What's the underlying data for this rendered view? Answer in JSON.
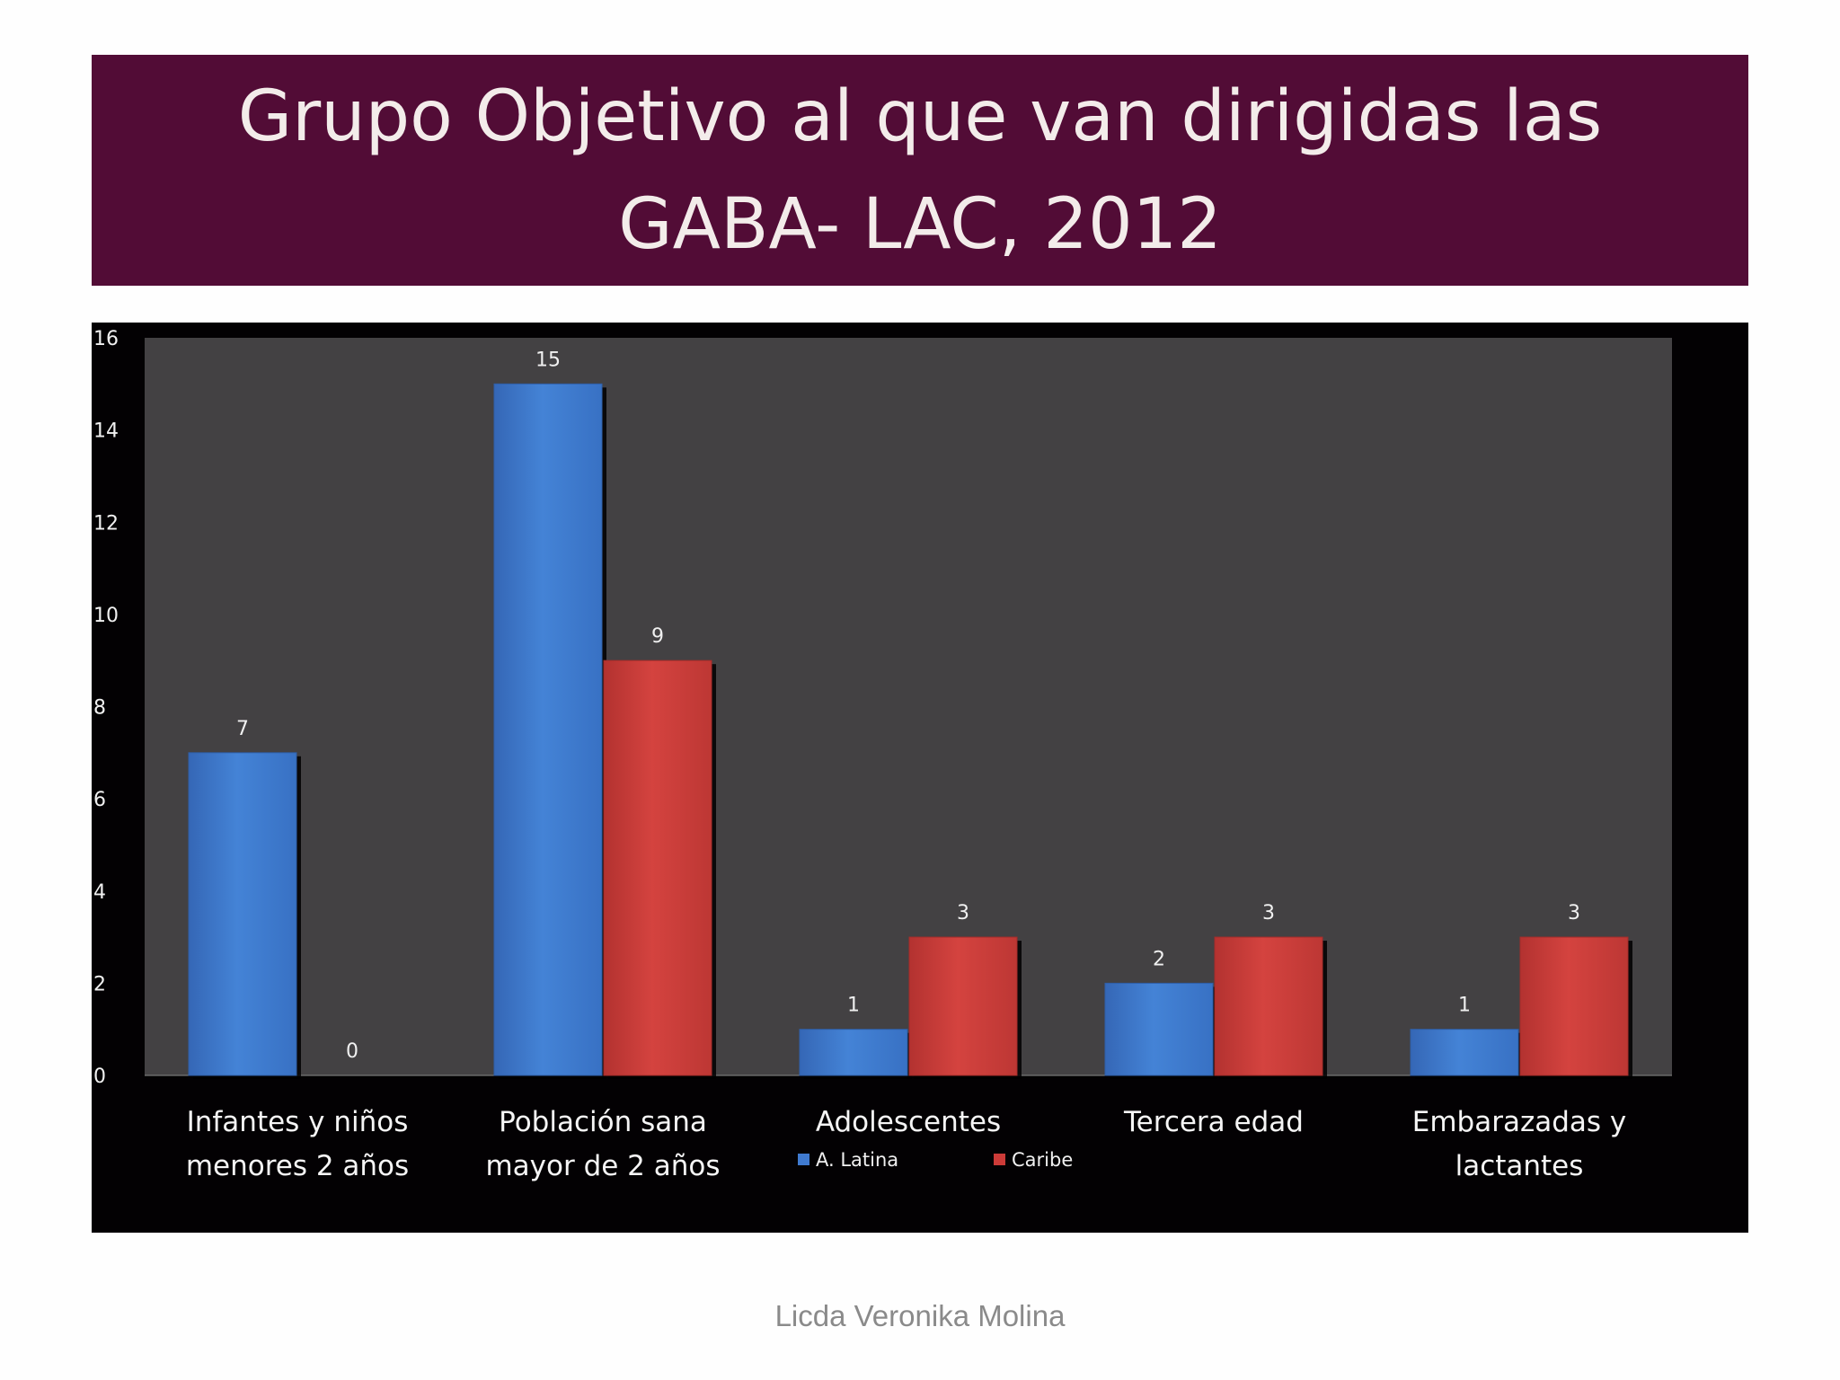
{
  "slide": {
    "title_line1": "Grupo Objetivo al que van dirigidas las",
    "title_line2": "GABA- LAC,  2012",
    "footer": "Licda Veronika Molina"
  },
  "colors": {
    "title_bg": "#520c36",
    "chart_bg": "#030103",
    "plot_bg": "#434143",
    "latina": "#3f7ad0",
    "caribe": "#cc3b38"
  },
  "chart_data": {
    "type": "bar",
    "title": "Grupo Objetivo al que van dirigidas las GABA- LAC,  2012",
    "categories": [
      [
        "Infantes y niños",
        "menores 2 años"
      ],
      [
        "Población sana",
        "mayor de 2 años"
      ],
      [
        "Adolescentes"
      ],
      [
        "Tercera edad"
      ],
      [
        "Embarazadas y",
        "lactantes"
      ]
    ],
    "series": [
      {
        "name": "A. Latina",
        "values": [
          7,
          15,
          1,
          2,
          1
        ]
      },
      {
        "name": "Caribe",
        "values": [
          0,
          9,
          3,
          3,
          3
        ]
      }
    ],
    "ylim": [
      0,
      16
    ],
    "yticks": [
      0,
      2,
      4,
      6,
      8,
      10,
      12,
      14,
      16
    ],
    "xlabel": "",
    "ylabel": "",
    "legend": "bottom",
    "grid": false
  }
}
